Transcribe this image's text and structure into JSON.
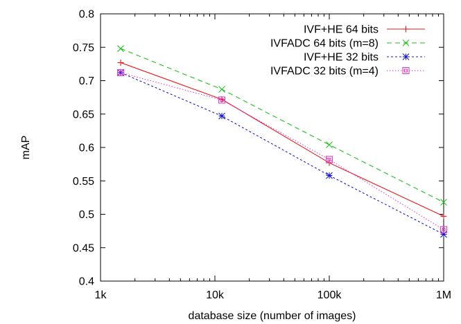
{
  "chart_data": {
    "type": "line",
    "xscale": "log",
    "xlim": [
      1000,
      1000000
    ],
    "ylim": [
      0.4,
      0.8
    ],
    "xlabel": "database size (number of images)",
    "ylabel": "mAP",
    "xticks": [
      {
        "value": 1000,
        "label": "1k"
      },
      {
        "value": 10000,
        "label": "10k"
      },
      {
        "value": 100000,
        "label": "100k"
      },
      {
        "value": 1000000,
        "label": "1M"
      }
    ],
    "yticks": [
      "0.4",
      "0.45",
      "0.5",
      "0.55",
      "0.6",
      "0.65",
      "0.7",
      "0.75",
      "0.8"
    ],
    "grid": false,
    "legend_position": "top-right",
    "x": [
      1500,
      11500,
      100000,
      1000000
    ],
    "series": [
      {
        "name": "IVF+HE 64 bits",
        "values": [
          0.727,
          0.672,
          0.577,
          0.497
        ],
        "color": "#e41a1c",
        "dash": "solid",
        "marker": "plus"
      },
      {
        "name": "IVFADC 64 bits (m=8)",
        "values": [
          0.748,
          0.687,
          0.604,
          0.518
        ],
        "color": "#1fbf1f",
        "dash": "dashed",
        "marker": "cross"
      },
      {
        "name": "IVF+HE 32 bits",
        "values": [
          0.712,
          0.647,
          0.558,
          0.47
        ],
        "color": "#1a1acc",
        "dash": "dotted",
        "marker": "star"
      },
      {
        "name": "IVFADC 32 bits (m=4)",
        "values": [
          0.712,
          0.671,
          0.582,
          0.477
        ],
        "color": "#e040c8",
        "dash": "fine-dotted",
        "marker": "square"
      }
    ]
  }
}
